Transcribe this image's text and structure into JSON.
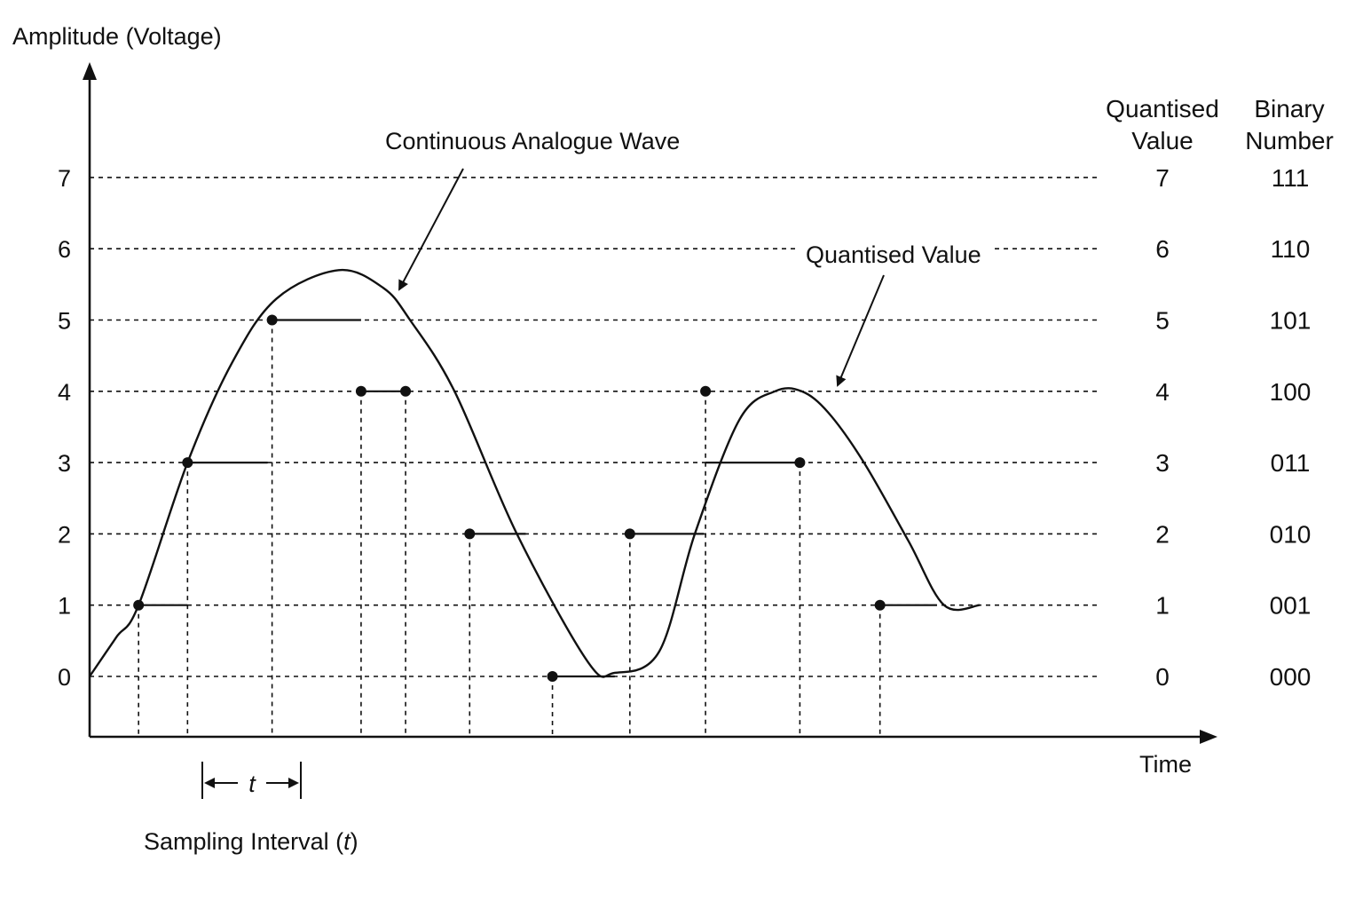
{
  "title_axis_y": "Amplitude (Voltage)",
  "title_axis_x": "Time",
  "header_quantised": [
    "Quantised",
    "Value"
  ],
  "header_binary": [
    "Binary",
    "Number"
  ],
  "label_wave": "Continuous Analogue Wave",
  "label_quantised": "Quantised Value",
  "label_interval_prefix": "Sampling Interval (",
  "label_interval_var": "t",
  "label_interval_suffix": ")",
  "interval_symbol": "t",
  "levels": [
    {
      "level": "0",
      "quantised": "0",
      "binary": "000"
    },
    {
      "level": "1",
      "quantised": "1",
      "binary": "001"
    },
    {
      "level": "2",
      "quantised": "2",
      "binary": "010"
    },
    {
      "level": "3",
      "quantised": "3",
      "binary": "011"
    },
    {
      "level": "4",
      "quantised": "4",
      "binary": "100"
    },
    {
      "level": "5",
      "quantised": "5",
      "binary": "101"
    },
    {
      "level": "6",
      "quantised": "6",
      "binary": "110"
    },
    {
      "level": "7",
      "quantised": "7",
      "binary": "111"
    }
  ],
  "chart_data": {
    "type": "line",
    "ylim": [
      0,
      7
    ],
    "wave_points": [
      [
        0,
        0
      ],
      [
        0.3,
        0.55
      ],
      [
        0.55,
        1.0
      ],
      [
        1.1,
        3.0
      ],
      [
        1.6,
        4.4
      ],
      [
        2.1,
        5.3
      ],
      [
        2.8,
        5.7
      ],
      [
        3.3,
        5.45
      ],
      [
        3.6,
        5.0
      ],
      [
        4.1,
        4.0
      ],
      [
        4.8,
        2.0
      ],
      [
        5.6,
        0.2
      ],
      [
        5.9,
        0.05
      ],
      [
        6.4,
        0.35
      ],
      [
        6.8,
        2.0
      ],
      [
        7.3,
        3.6
      ],
      [
        7.7,
        4.0
      ],
      [
        8.0,
        4.0
      ],
      [
        8.3,
        3.7
      ],
      [
        8.7,
        3.0
      ],
      [
        9.2,
        1.9
      ],
      [
        9.6,
        1.0
      ],
      [
        10.0,
        1.0
      ]
    ],
    "samples": [
      {
        "t": 0.55,
        "value": 1,
        "hold_to": 1.1
      },
      {
        "t": 1.1,
        "value": 3,
        "hold_to": 2.0
      },
      {
        "t": 2.05,
        "value": 5,
        "hold_to": 3.05
      },
      {
        "t": 3.05,
        "value": 4,
        "hold_to": 3.55
      },
      {
        "t": 3.55,
        "value": 4,
        "hold_to": 3.55
      },
      {
        "t": 4.27,
        "value": 2,
        "hold_to": 4.9
      },
      {
        "t": 5.2,
        "value": 0,
        "hold_to": 5.9
      },
      {
        "t": 6.07,
        "value": 2,
        "hold_to": 6.9
      },
      {
        "t": 6.92,
        "value": 4,
        "hold_to": 6.92
      },
      {
        "t": 7.98,
        "value": 3,
        "hold_to": 6.92
      },
      {
        "t": 8.88,
        "value": 1,
        "hold_to": 9.52
      }
    ]
  }
}
